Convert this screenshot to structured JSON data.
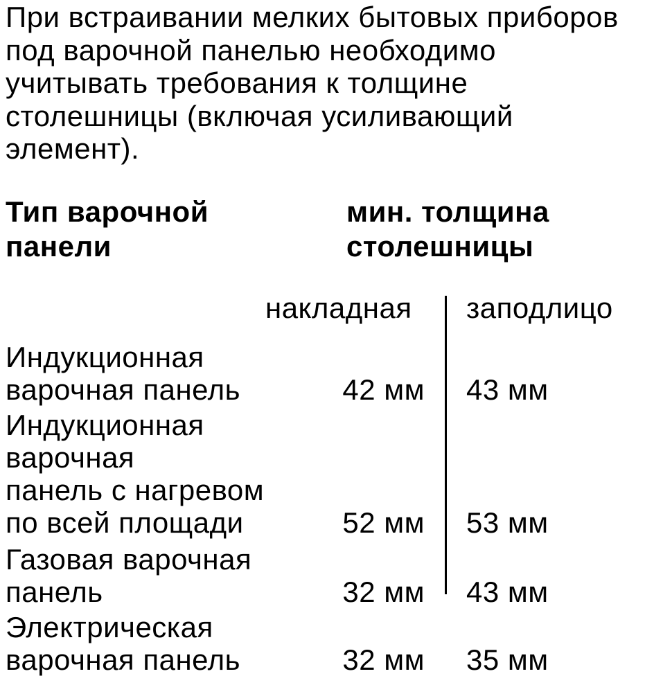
{
  "intro": {
    "text": "При встраивании мелких бытовых приборов\nпод варочной панелью необходимо\nучитывать требования к толщине\nстолешницы (включая усиливающий\nэлемент)."
  },
  "table": {
    "header": {
      "type_col": "Тип варочной\nпанели",
      "thickness_col": "мин. толщина\nстолешницы"
    },
    "subheader": {
      "surface_mounted": "накладная",
      "flush_mounted": "заподлицо"
    },
    "rows": [
      {
        "type": "Индукционная\nварочная панель",
        "surface_mounted": "42 мм",
        "flush_mounted": "43 мм"
      },
      {
        "type": "Индукционная варочная\nпанель с нагревом\nпо всей площади",
        "surface_mounted": "52 мм",
        "flush_mounted": "53 мм"
      },
      {
        "type": "Газовая варочная\nпанель",
        "surface_mounted": "32 мм",
        "flush_mounted": "43 мм"
      },
      {
        "type": "Электрическая\nварочная панель",
        "surface_mounted": "32 мм",
        "flush_mounted": "35 мм"
      }
    ]
  }
}
